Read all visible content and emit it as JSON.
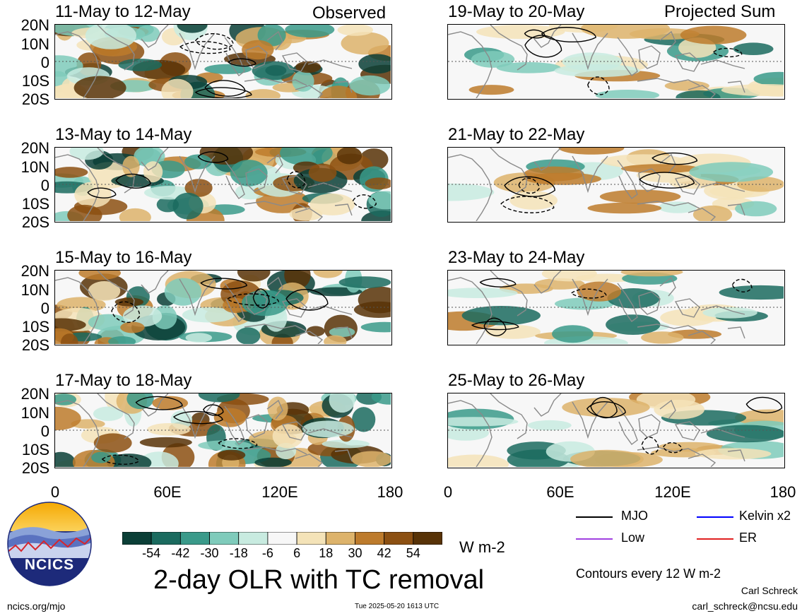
{
  "headers": {
    "left": "Observed",
    "right": "Projected Sum"
  },
  "panels": [
    {
      "title": "11-May to 12-May"
    },
    {
      "title": "19-May to 20-May"
    },
    {
      "title": "13-May to 14-May"
    },
    {
      "title": "21-May to 22-May"
    },
    {
      "title": "15-May to 16-May"
    },
    {
      "title": "23-May to 24-May"
    },
    {
      "title": "17-May to 18-May"
    },
    {
      "title": "25-May to 26-May"
    }
  ],
  "lat_labels": [
    "20N",
    "10N",
    "0",
    "10S",
    "20S"
  ],
  "lon_labels": [
    "0",
    "60E",
    "120E",
    "180"
  ],
  "colorbar": {
    "ticks": [
      "-54",
      "-42",
      "-30",
      "-18",
      "-6",
      "6",
      "18",
      "30",
      "42",
      "54"
    ],
    "colors": [
      "#0b3f37",
      "#1b6b5f",
      "#3a9a8a",
      "#7fcbbb",
      "#c8ebe0",
      "#f7f7f7",
      "#f4e3b8",
      "#ddb36b",
      "#bd7b2c",
      "#8c5012",
      "#583307"
    ],
    "units": "W m-2"
  },
  "main_title": "2-day OLR with TC removal",
  "legend": {
    "items": [
      {
        "label": "MJO",
        "color": "#000000"
      },
      {
        "label": "Kelvin x2",
        "color": "#0000ff"
      },
      {
        "label": "Low",
        "color": "#a040e0"
      },
      {
        "label": "ER",
        "color": "#e02020"
      }
    ],
    "contours_note": "Contours every 12 W m-2"
  },
  "logo": {
    "text": "NCICS"
  },
  "footer": {
    "url": "ncics.org/mjo",
    "timestamp": "Tue 2025-05-20 1613 UTC",
    "author": "Carl Schreck",
    "email": "carl_schreck@ncsu.edu"
  }
}
